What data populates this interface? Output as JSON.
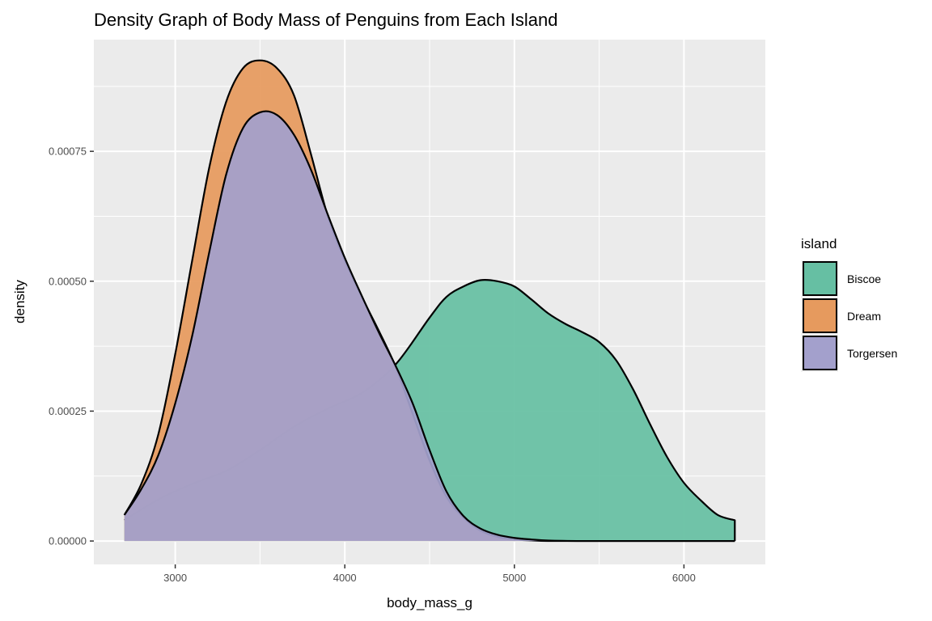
{
  "chart_data": {
    "type": "area",
    "title": "Density Graph of Body Mass of Penguins from Each Island",
    "xlabel": "body_mass_g",
    "ylabel": "density",
    "xlim": [
      2520,
      6480
    ],
    "ylim": [
      -4.5e-05,
      0.000965
    ],
    "x_ticks": [
      3000,
      4000,
      5000,
      6000
    ],
    "x_tick_labels": [
      "3000",
      "4000",
      "5000",
      "6000"
    ],
    "x_minor_ticks": [
      2500,
      3500,
      4500,
      5500,
      6500
    ],
    "y_ticks": [
      0,
      0.00025,
      0.0005,
      0.00075
    ],
    "y_tick_labels": [
      "0.00000",
      "0.00025",
      "0.00050",
      "0.00075"
    ],
    "y_minor_ticks": [
      0.000125,
      0.000375,
      0.000625,
      0.000875
    ],
    "grid": true,
    "legend": {
      "title": "island",
      "position": "right"
    },
    "series": [
      {
        "name": "Biscoe",
        "color": "#66bfa3",
        "x": [
          2700,
          2900,
          3100,
          3300,
          3500,
          3700,
          3900,
          4100,
          4300,
          4500,
          4600,
          4700,
          4800,
          4900,
          5000,
          5100,
          5200,
          5300,
          5400,
          5500,
          5600,
          5700,
          5800,
          5900,
          6000,
          6100,
          6200,
          6300
        ],
        "y": [
          4e-05,
          8e-05,
          0.00011,
          0.000135,
          0.000175,
          0.00022,
          0.000255,
          0.000285,
          0.00034,
          0.00043,
          0.00047,
          0.00049,
          0.000502,
          0.0005,
          0.00049,
          0.000465,
          0.000438,
          0.000418,
          0.000402,
          0.000383,
          0.000348,
          0.000292,
          0.000225,
          0.000162,
          0.000112,
          7.8e-05,
          5e-05,
          4e-05
        ]
      },
      {
        "name": "Dream",
        "color": "#e69a5e",
        "x": [
          2700,
          2800,
          2900,
          3000,
          3100,
          3200,
          3300,
          3400,
          3500,
          3600,
          3700,
          3800,
          3900,
          4000,
          4100,
          4200,
          4300,
          4400,
          4500,
          4600,
          4700,
          4800,
          4900,
          5000,
          5100,
          5200,
          5400,
          5600,
          5800,
          6000,
          6300
        ],
        "y": [
          5e-05,
          0.00011,
          0.000205,
          0.00036,
          0.00054,
          0.000718,
          0.000845,
          0.00091,
          0.000925,
          0.00091,
          0.000858,
          0.000745,
          0.000625,
          0.00054,
          0.00047,
          0.000405,
          0.000335,
          0.000245,
          0.000155,
          8.5e-05,
          4.5e-05,
          2e-05,
          8e-06,
          3e-06,
          1e-06,
          0,
          0,
          0,
          0,
          0,
          0
        ]
      },
      {
        "name": "Torgersen",
        "color": "#a3a0cc",
        "x": [
          2700,
          2800,
          2900,
          3000,
          3100,
          3200,
          3300,
          3400,
          3500,
          3600,
          3700,
          3800,
          3900,
          4000,
          4100,
          4200,
          4300,
          4400,
          4500,
          4600,
          4700,
          4800,
          4900,
          5000,
          5100,
          5200,
          5400,
          5600,
          5800,
          6000,
          6300
        ],
        "y": [
          5e-05,
          0.0001,
          0.000165,
          0.000265,
          0.000395,
          0.000555,
          0.000705,
          0.000795,
          0.000825,
          0.00082,
          0.000782,
          0.000715,
          0.000628,
          0.000545,
          0.000472,
          0.000402,
          0.000337,
          0.000265,
          0.000175,
          9.5e-05,
          4.8e-05,
          2.4e-05,
          1.2e-05,
          6e-06,
          3e-06,
          1e-06,
          0,
          0,
          0,
          0,
          0
        ]
      }
    ]
  }
}
